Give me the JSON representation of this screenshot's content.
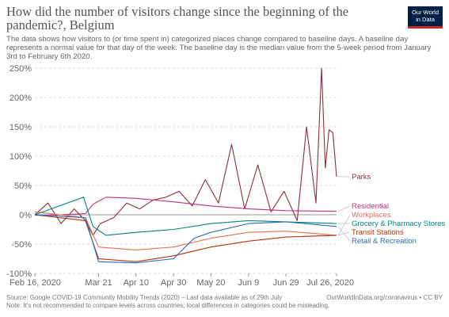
{
  "header": {
    "title": "How did the number of visitors change since the beginning of the pandemic?, Belgium",
    "subtitle": "The data shows how visitors to (or time spent in) categorized places change compared to baseline days. A baseline day represents a normal value for that day of the week. The baseline day is the median value from the 5-week period from January 3rd to February 6th 2020.",
    "logo_line1": "Our World",
    "logo_line2": "in Data",
    "logo_bg": "#002147",
    "logo_accent": "#ce261e"
  },
  "footer": {
    "source": "Source: Google COVID-19 Community Mobility Trends (2020) – Last data available as of 29th July",
    "note": "Note: It's not recommended to compare levels across countries; local differences in categories could be misleading.",
    "url": "OurWorldInData.org/coronavirus • CC BY"
  },
  "chart_data": {
    "type": "line",
    "y_tick_labels": [
      "-100%",
      "-50%",
      "0%",
      "50%",
      "100%",
      "150%",
      "200%",
      "250%"
    ],
    "x_tick_labels": [
      "Feb 16, 2020",
      "Mar 21",
      "Apr 10",
      "Apr 30",
      "May 20",
      "Jun 9",
      "Jun 29",
      "Jul 26, 2020"
    ],
    "x_tick_dates": [
      "2020-02-16",
      "2020-03-21",
      "2020-04-10",
      "2020-04-30",
      "2020-05-20",
      "2020-06-09",
      "2020-06-29",
      "2020-07-26"
    ],
    "x_range": [
      "2020-02-16",
      "2020-07-26"
    ],
    "ylim": [
      -100,
      250
    ],
    "grid": true,
    "series": [
      {
        "name": "Parks",
        "color": "#883039",
        "x": [
          "2020-02-16",
          "2020-02-23",
          "2020-03-01",
          "2020-03-08",
          "2020-03-14",
          "2020-03-18",
          "2020-03-22",
          "2020-03-29",
          "2020-04-05",
          "2020-04-12",
          "2020-04-19",
          "2020-04-26",
          "2020-05-03",
          "2020-05-10",
          "2020-05-17",
          "2020-05-24",
          "2020-05-31",
          "2020-06-07",
          "2020-06-14",
          "2020-06-21",
          "2020-06-28",
          "2020-07-05",
          "2020-07-10",
          "2020-07-15",
          "2020-07-18",
          "2020-07-20",
          "2020-07-22",
          "2020-07-24",
          "2020-07-26"
        ],
        "y": [
          0,
          20,
          -15,
          10,
          -10,
          -35,
          -15,
          -5,
          20,
          10,
          25,
          30,
          40,
          15,
          60,
          20,
          120,
          10,
          85,
          5,
          40,
          -10,
          150,
          20,
          250,
          80,
          145,
          140,
          65
        ]
      },
      {
        "name": "Residential",
        "color": "#c4307c",
        "x": [
          "2020-02-16",
          "2020-03-01",
          "2020-03-14",
          "2020-03-18",
          "2020-03-25",
          "2020-04-10",
          "2020-04-30",
          "2020-05-20",
          "2020-06-09",
          "2020-06-29",
          "2020-07-26"
        ],
        "y": [
          -1,
          0,
          2,
          18,
          30,
          28,
          22,
          15,
          10,
          7,
          6
        ]
      },
      {
        "name": "Workplaces",
        "color": "#e56e5a",
        "x": [
          "2020-02-16",
          "2020-03-14",
          "2020-03-21",
          "2020-04-10",
          "2020-04-30",
          "2020-05-20",
          "2020-06-09",
          "2020-06-29",
          "2020-07-26"
        ],
        "y": [
          5,
          -5,
          -55,
          -60,
          -55,
          -40,
          -30,
          -28,
          -35
        ]
      },
      {
        "name": "Grocery & Pharmacy Stores",
        "color": "#00847e",
        "x": [
          "2020-02-16",
          "2020-03-13",
          "2020-03-18",
          "2020-03-25",
          "2020-04-10",
          "2020-04-30",
          "2020-05-20",
          "2020-06-09",
          "2020-06-29",
          "2020-07-26"
        ],
        "y": [
          0,
          30,
          -20,
          -35,
          -30,
          -25,
          -15,
          -10,
          -12,
          -15
        ]
      },
      {
        "name": "Transit Stations",
        "color": "#b13507",
        "x": [
          "2020-02-16",
          "2020-03-14",
          "2020-03-21",
          "2020-04-10",
          "2020-04-30",
          "2020-05-20",
          "2020-06-09",
          "2020-06-29",
          "2020-07-26"
        ],
        "y": [
          0,
          -10,
          -75,
          -80,
          -70,
          -55,
          -45,
          -38,
          -35
        ]
      },
      {
        "name": "Retail & Recreation",
        "color": "#286bbb",
        "x": [
          "2020-02-16",
          "2020-03-14",
          "2020-03-21",
          "2020-04-10",
          "2020-04-30",
          "2020-05-11",
          "2020-05-20",
          "2020-06-09",
          "2020-06-29",
          "2020-07-26"
        ],
        "y": [
          0,
          -5,
          -80,
          -82,
          -75,
          -40,
          -30,
          -15,
          -12,
          -20
        ]
      }
    ]
  }
}
